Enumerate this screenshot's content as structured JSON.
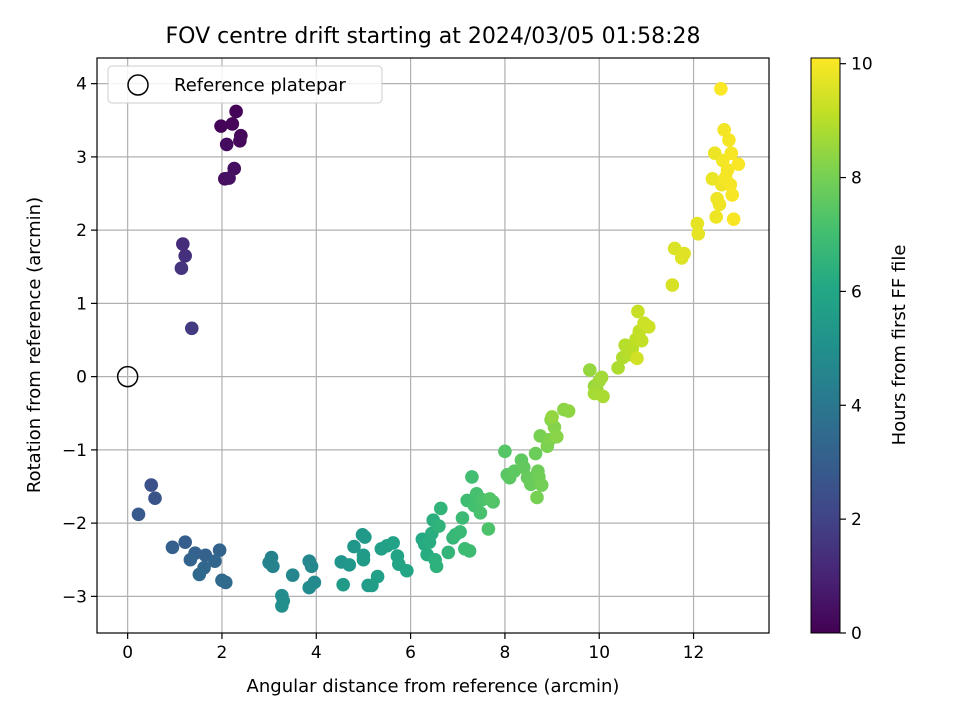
{
  "chart_data": {
    "type": "scatter",
    "title": "FOV centre drift starting at 2024/03/05 01:58:28",
    "xlabel": "Angular distance from reference (arcmin)",
    "ylabel": "Rotation from reference (arcmin)",
    "xlim": [
      -0.65,
      13.6
    ],
    "ylim": [
      -3.5,
      4.35
    ],
    "xticks": [
      0,
      2,
      4,
      6,
      8,
      10,
      12
    ],
    "yticks": [
      -3,
      -2,
      -1,
      0,
      1,
      2,
      3,
      4
    ],
    "grid": true,
    "legend": {
      "placement": "top-left",
      "entries": [
        "Reference platepar"
      ]
    },
    "reference_point": {
      "x": 0,
      "y": 0
    },
    "colorbar": {
      "label": "Hours from first FF file",
      "range": [
        0,
        10.1
      ],
      "ticks": [
        0,
        2,
        4,
        6,
        8,
        10
      ],
      "colormap": "viridis"
    },
    "points": [
      {
        "x": 2.3,
        "y": 3.62,
        "h": 0.05
      },
      {
        "x": 1.98,
        "y": 3.42,
        "h": 0.1
      },
      {
        "x": 2.22,
        "y": 3.45,
        "h": 0.15
      },
      {
        "x": 2.4,
        "y": 3.29,
        "h": 0.2
      },
      {
        "x": 2.38,
        "y": 3.22,
        "h": 0.25
      },
      {
        "x": 2.1,
        "y": 3.17,
        "h": 0.3
      },
      {
        "x": 2.26,
        "y": 2.84,
        "h": 0.35
      },
      {
        "x": 2.06,
        "y": 2.7,
        "h": 0.4
      },
      {
        "x": 2.15,
        "y": 2.71,
        "h": 0.45
      },
      {
        "x": 1.17,
        "y": 1.81,
        "h": 1.3
      },
      {
        "x": 1.22,
        "y": 1.65,
        "h": 1.4
      },
      {
        "x": 1.14,
        "y": 1.48,
        "h": 1.5
      },
      {
        "x": 1.36,
        "y": 0.66,
        "h": 1.75
      },
      {
        "x": 0.5,
        "y": -1.48,
        "h": 2.5
      },
      {
        "x": 0.58,
        "y": -1.66,
        "h": 2.6
      },
      {
        "x": 0.23,
        "y": -1.88,
        "h": 2.8
      },
      {
        "x": 1.22,
        "y": -2.26,
        "h": 3.0
      },
      {
        "x": 0.95,
        "y": -2.33,
        "h": 3.05
      },
      {
        "x": 1.43,
        "y": -2.41,
        "h": 3.1
      },
      {
        "x": 1.65,
        "y": -2.44,
        "h": 3.15
      },
      {
        "x": 1.95,
        "y": -2.37,
        "h": 3.2
      },
      {
        "x": 1.33,
        "y": -2.5,
        "h": 3.25
      },
      {
        "x": 1.85,
        "y": -2.52,
        "h": 3.3
      },
      {
        "x": 1.62,
        "y": -2.61,
        "h": 3.35
      },
      {
        "x": 1.52,
        "y": -2.7,
        "h": 3.4
      },
      {
        "x": 2.0,
        "y": -2.78,
        "h": 3.45
      },
      {
        "x": 2.08,
        "y": -2.81,
        "h": 3.5
      },
      {
        "x": 3.05,
        "y": -2.47,
        "h": 4.4
      },
      {
        "x": 3.0,
        "y": -2.54,
        "h": 4.45
      },
      {
        "x": 3.08,
        "y": -2.59,
        "h": 4.5
      },
      {
        "x": 3.5,
        "y": -2.71,
        "h": 4.6
      },
      {
        "x": 3.85,
        "y": -2.52,
        "h": 4.65
      },
      {
        "x": 3.9,
        "y": -2.59,
        "h": 4.7
      },
      {
        "x": 3.96,
        "y": -2.81,
        "h": 4.75
      },
      {
        "x": 3.85,
        "y": -2.88,
        "h": 4.8
      },
      {
        "x": 3.27,
        "y": -2.99,
        "h": 4.85
      },
      {
        "x": 3.3,
        "y": -3.06,
        "h": 4.9
      },
      {
        "x": 3.27,
        "y": -3.13,
        "h": 4.95
      },
      {
        "x": 4.53,
        "y": -2.53,
        "h": 5.2
      },
      {
        "x": 4.7,
        "y": -2.57,
        "h": 5.25
      },
      {
        "x": 4.8,
        "y": -2.32,
        "h": 5.3
      },
      {
        "x": 4.98,
        "y": -2.16,
        "h": 5.35
      },
      {
        "x": 5.03,
        "y": -2.19,
        "h": 5.4
      },
      {
        "x": 5.0,
        "y": -2.44,
        "h": 5.45
      },
      {
        "x": 5.0,
        "y": -2.5,
        "h": 5.5
      },
      {
        "x": 4.57,
        "y": -2.84,
        "h": 5.5
      },
      {
        "x": 5.1,
        "y": -2.85,
        "h": 5.55
      },
      {
        "x": 5.18,
        "y": -2.85,
        "h": 5.6
      },
      {
        "x": 5.3,
        "y": -2.73,
        "h": 5.65
      },
      {
        "x": 5.38,
        "y": -2.35,
        "h": 5.7
      },
      {
        "x": 5.5,
        "y": -2.31,
        "h": 5.75
      },
      {
        "x": 5.63,
        "y": -2.27,
        "h": 5.8
      },
      {
        "x": 5.72,
        "y": -2.45,
        "h": 5.85
      },
      {
        "x": 5.75,
        "y": -2.56,
        "h": 5.9
      },
      {
        "x": 5.92,
        "y": -2.65,
        "h": 5.95
      },
      {
        "x": 6.25,
        "y": -2.22,
        "h": 6.1
      },
      {
        "x": 6.3,
        "y": -2.29,
        "h": 6.15
      },
      {
        "x": 6.35,
        "y": -2.43,
        "h": 6.2
      },
      {
        "x": 6.4,
        "y": -2.26,
        "h": 6.25
      },
      {
        "x": 6.45,
        "y": -2.14,
        "h": 6.3
      },
      {
        "x": 6.48,
        "y": -1.96,
        "h": 6.35
      },
      {
        "x": 6.52,
        "y": -2.5,
        "h": 6.4
      },
      {
        "x": 6.55,
        "y": -2.59,
        "h": 6.45
      },
      {
        "x": 6.6,
        "y": -2.04,
        "h": 6.5
      },
      {
        "x": 6.64,
        "y": -1.8,
        "h": 6.55
      },
      {
        "x": 6.8,
        "y": -2.4,
        "h": 6.6
      },
      {
        "x": 6.9,
        "y": -2.2,
        "h": 6.65
      },
      {
        "x": 6.95,
        "y": -2.16,
        "h": 6.7
      },
      {
        "x": 7.05,
        "y": -2.12,
        "h": 6.75
      },
      {
        "x": 7.1,
        "y": -1.93,
        "h": 6.8
      },
      {
        "x": 7.15,
        "y": -2.35,
        "h": 6.85
      },
      {
        "x": 7.25,
        "y": -2.38,
        "h": 6.9
      },
      {
        "x": 7.2,
        "y": -1.69,
        "h": 6.95
      },
      {
        "x": 7.3,
        "y": -1.37,
        "h": 7.0
      },
      {
        "x": 7.35,
        "y": -1.76,
        "h": 7.05
      },
      {
        "x": 7.4,
        "y": -1.6,
        "h": 7.1
      },
      {
        "x": 7.48,
        "y": -1.86,
        "h": 7.15
      },
      {
        "x": 7.52,
        "y": -1.68,
        "h": 7.2
      },
      {
        "x": 7.65,
        "y": -2.08,
        "h": 7.25
      },
      {
        "x": 7.75,
        "y": -1.71,
        "h": 7.3
      },
      {
        "x": 7.68,
        "y": -1.67,
        "h": 7.35
      },
      {
        "x": 8.0,
        "y": -1.02,
        "h": 7.4
      },
      {
        "x": 8.05,
        "y": -1.34,
        "h": 7.45
      },
      {
        "x": 8.1,
        "y": -1.38,
        "h": 7.5
      },
      {
        "x": 8.2,
        "y": -1.29,
        "h": 7.55
      },
      {
        "x": 8.35,
        "y": -1.14,
        "h": 7.6
      },
      {
        "x": 8.4,
        "y": -1.24,
        "h": 7.65
      },
      {
        "x": 8.48,
        "y": -1.38,
        "h": 7.7
      },
      {
        "x": 8.55,
        "y": -1.47,
        "h": 7.75
      },
      {
        "x": 8.65,
        "y": -1.05,
        "h": 7.8
      },
      {
        "x": 8.7,
        "y": -1.29,
        "h": 7.85
      },
      {
        "x": 8.72,
        "y": -1.37,
        "h": 7.9
      },
      {
        "x": 8.78,
        "y": -1.48,
        "h": 7.95
      },
      {
        "x": 8.68,
        "y": -1.65,
        "h": 8.0
      },
      {
        "x": 8.75,
        "y": -0.81,
        "h": 8.05
      },
      {
        "x": 8.9,
        "y": -0.95,
        "h": 8.1
      },
      {
        "x": 8.95,
        "y": -0.86,
        "h": 8.15
      },
      {
        "x": 8.98,
        "y": -0.59,
        "h": 8.2
      },
      {
        "x": 9.05,
        "y": -0.69,
        "h": 8.25
      },
      {
        "x": 9.1,
        "y": -0.82,
        "h": 8.3
      },
      {
        "x": 9.25,
        "y": -0.45,
        "h": 8.35
      },
      {
        "x": 9.35,
        "y": -0.47,
        "h": 8.4
      },
      {
        "x": 9.0,
        "y": -0.55,
        "h": 8.45
      },
      {
        "x": 9.8,
        "y": 0.09,
        "h": 8.5
      },
      {
        "x": 9.9,
        "y": -0.13,
        "h": 8.55
      },
      {
        "x": 9.95,
        "y": -0.18,
        "h": 8.6
      },
      {
        "x": 10.0,
        "y": -0.06,
        "h": 8.65
      },
      {
        "x": 10.05,
        "y": -0.01,
        "h": 8.7
      },
      {
        "x": 9.9,
        "y": -0.23,
        "h": 8.75
      },
      {
        "x": 10.08,
        "y": -0.27,
        "h": 8.8
      },
      {
        "x": 10.4,
        "y": 0.12,
        "h": 8.85
      },
      {
        "x": 10.5,
        "y": 0.26,
        "h": 8.9
      },
      {
        "x": 10.55,
        "y": 0.43,
        "h": 8.95
      },
      {
        "x": 10.65,
        "y": 0.3,
        "h": 9.0
      },
      {
        "x": 10.7,
        "y": 0.38,
        "h": 9.05
      },
      {
        "x": 10.78,
        "y": 0.51,
        "h": 9.1
      },
      {
        "x": 10.85,
        "y": 0.62,
        "h": 9.15
      },
      {
        "x": 10.9,
        "y": 0.49,
        "h": 9.2
      },
      {
        "x": 10.82,
        "y": 0.89,
        "h": 9.25
      },
      {
        "x": 10.95,
        "y": 0.73,
        "h": 9.3
      },
      {
        "x": 11.05,
        "y": 0.68,
        "h": 9.35
      },
      {
        "x": 10.8,
        "y": 0.25,
        "h": 9.4
      },
      {
        "x": 11.55,
        "y": 1.25,
        "h": 9.5
      },
      {
        "x": 11.6,
        "y": 1.75,
        "h": 9.55
      },
      {
        "x": 11.75,
        "y": 1.62,
        "h": 9.6
      },
      {
        "x": 11.8,
        "y": 1.68,
        "h": 9.65
      },
      {
        "x": 12.08,
        "y": 2.09,
        "h": 9.7
      },
      {
        "x": 12.1,
        "y": 1.95,
        "h": 9.75
      },
      {
        "x": 12.4,
        "y": 2.7,
        "h": 9.8
      },
      {
        "x": 12.45,
        "y": 3.05,
        "h": 9.82
      },
      {
        "x": 12.5,
        "y": 2.43,
        "h": 9.84
      },
      {
        "x": 12.48,
        "y": 2.18,
        "h": 9.86
      },
      {
        "x": 12.55,
        "y": 2.35,
        "h": 9.88
      },
      {
        "x": 12.6,
        "y": 2.62,
        "h": 9.9
      },
      {
        "x": 12.62,
        "y": 2.95,
        "h": 9.92
      },
      {
        "x": 12.65,
        "y": 3.37,
        "h": 9.94
      },
      {
        "x": 12.68,
        "y": 2.72,
        "h": 9.95
      },
      {
        "x": 12.72,
        "y": 2.82,
        "h": 9.96
      },
      {
        "x": 12.75,
        "y": 3.23,
        "h": 9.97
      },
      {
        "x": 12.78,
        "y": 2.62,
        "h": 9.98
      },
      {
        "x": 12.8,
        "y": 3.05,
        "h": 9.99
      },
      {
        "x": 12.82,
        "y": 2.48,
        "h": 10.0
      },
      {
        "x": 12.85,
        "y": 2.15,
        "h": 10.02
      },
      {
        "x": 12.95,
        "y": 2.9,
        "h": 10.04
      },
      {
        "x": 12.58,
        "y": 3.93,
        "h": 10.05
      }
    ]
  }
}
